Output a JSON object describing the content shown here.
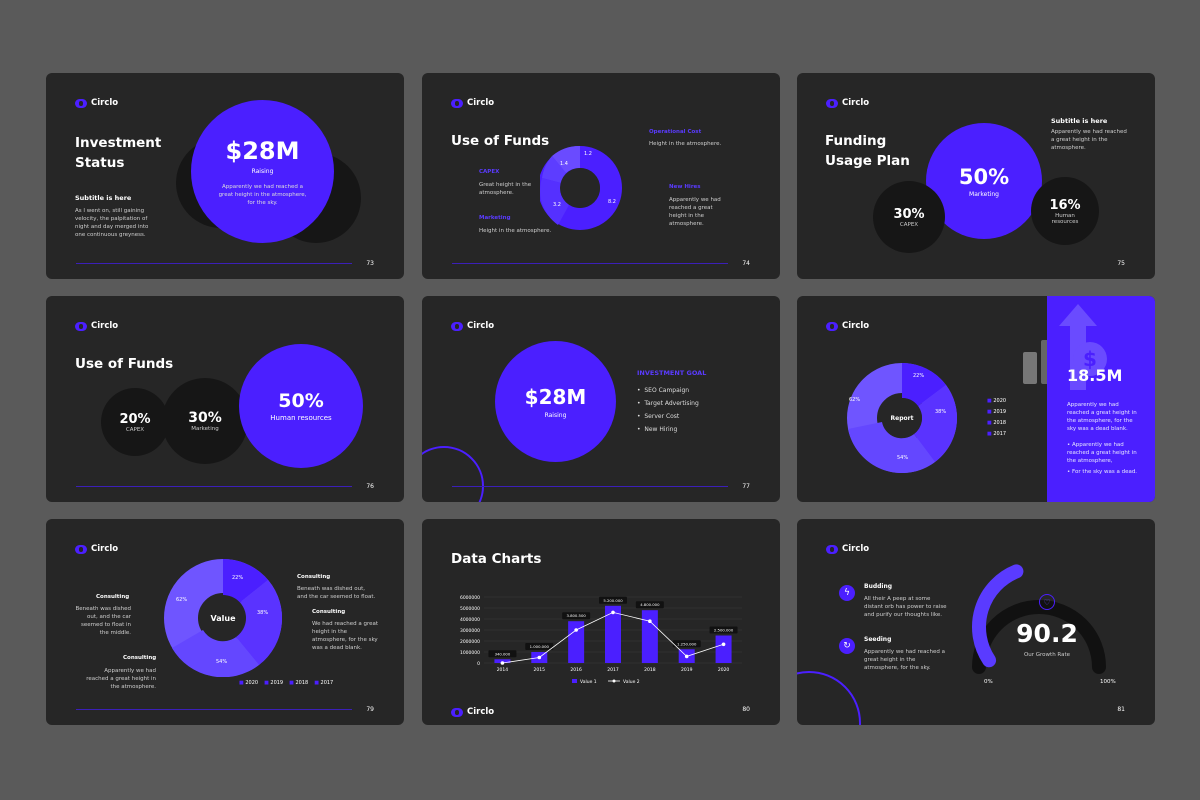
{
  "brand": "Circlo",
  "s73": {
    "title": "Investment Status",
    "amount": "$28M",
    "amount_label": "Raising",
    "amount_desc": "Apparently we had reached a great height in the atmosphere, for the sky.",
    "subtitle": "Subtitle is here",
    "body": "As I went on, still gaining velocity, the palpitation of night and day merged into one continuous greyness.",
    "page": "73"
  },
  "s74": {
    "title": "Use of Funds",
    "v1": "1.2",
    "v2": "1.4",
    "v3": "3.2",
    "v4": "8.2",
    "l1": "Operational Cost",
    "l1d": "Height in the atmosphere.",
    "l2": "CAPEX",
    "l2d": "Great height in the atmosphere.",
    "l3": "Marketing",
    "l3d": "Height in the atmosphere.",
    "l4": "New Hires",
    "l4d": "Apparently we had reached a great height in the atmosphere.",
    "page": "74"
  },
  "s75": {
    "title": "Funding Usage Plan",
    "subtitle": "Subtitle is here",
    "body": "Apparently we had reached a great height in the atmosphere.",
    "p1": "50%",
    "p1l": "Marketing",
    "p2": "30%",
    "p2l": "CAPEX",
    "p3": "16%",
    "p3l": "Human resources",
    "page": "75"
  },
  "s76": {
    "title": "Use of Funds",
    "p1": "20%",
    "p1l": "CAPEX",
    "p2": "30%",
    "p2l": "Marketing",
    "p3": "50%",
    "p3l": "Human resources",
    "page": "76"
  },
  "s77": {
    "amount": "$28M",
    "amount_label": "Raising",
    "goal": "INVESTMENT GOAL",
    "items": [
      "SEO Campaign",
      "Target Advertising",
      "Server Cost",
      "New Hiring"
    ],
    "page": "77"
  },
  "s78": {
    "center": "Report",
    "a": "22%",
    "b": "38%",
    "c": "54%",
    "d": "62%",
    "legend": [
      "2020",
      "2019",
      "2018",
      "2017"
    ],
    "value": "18.5M",
    "desc": "Apparently we had reached a great height in the atmosphere, for the sky was a dead blank.",
    "b1": "Apparently we had reached a great height in the atmosphere,",
    "b2": "For the sky was a dead."
  },
  "s79": {
    "center": "Value",
    "a": "22%",
    "b": "38%",
    "c": "54%",
    "d": "62%",
    "c1": "Consulting",
    "c1d": "Beneath was dished out, and the car seemed to float in the middle.",
    "c2": "Consulting",
    "c2d": "Apparently we had reached a great height in the atmosphere.",
    "c3": "Consulting",
    "c3d": "Beneath was dished out, and the car seemed to float.",
    "c4": "Consulting",
    "c4d": "We had reached a great height in the atmosphere, for the sky was a dead blank.",
    "legend": [
      "2020",
      "2019",
      "2018",
      "2017"
    ],
    "page": "79"
  },
  "s80": {
    "title": "Data Charts",
    "page": "80"
  },
  "s81": {
    "i1": "Budding",
    "i1d": "All their A peep at some distant orb has power to raise and purify our thoughts like.",
    "i2": "Seeding",
    "i2d": "Apparently we had reached a great height in the atmosphere, for the sky.",
    "gauge": "90.2",
    "gauge_label": "Our Growth Rate",
    "min": "0%",
    "max": "100%",
    "page": "81"
  },
  "chart_data": {
    "type": "bar",
    "title": "Data Charts",
    "categories": [
      "2014",
      "2015",
      "2016",
      "2017",
      "2018",
      "2019",
      "2020"
    ],
    "series": [
      {
        "name": "Value 1",
        "values": [
          340000,
          1000000,
          3800500,
          5200000,
          4800000,
          1250000,
          2500000
        ]
      },
      {
        "name": "Value 2",
        "values": [
          0,
          500000,
          3000000,
          4600000,
          3800000,
          600000,
          1700000
        ]
      }
    ],
    "data_labels": [
      "340.000",
      "1.000.000",
      "3.800.500",
      "5.200.000",
      "4.800.000",
      "1.250.000",
      "2.500.000"
    ],
    "yticks": [
      "6000000",
      "5000000",
      "4000000",
      "3000000",
      "2000000",
      "1000000",
      "0"
    ],
    "ylim": [
      0,
      6000000
    ],
    "legend": "bottom",
    "colors": {
      "bar": "#4b1fff",
      "line": "#ffffff"
    }
  }
}
